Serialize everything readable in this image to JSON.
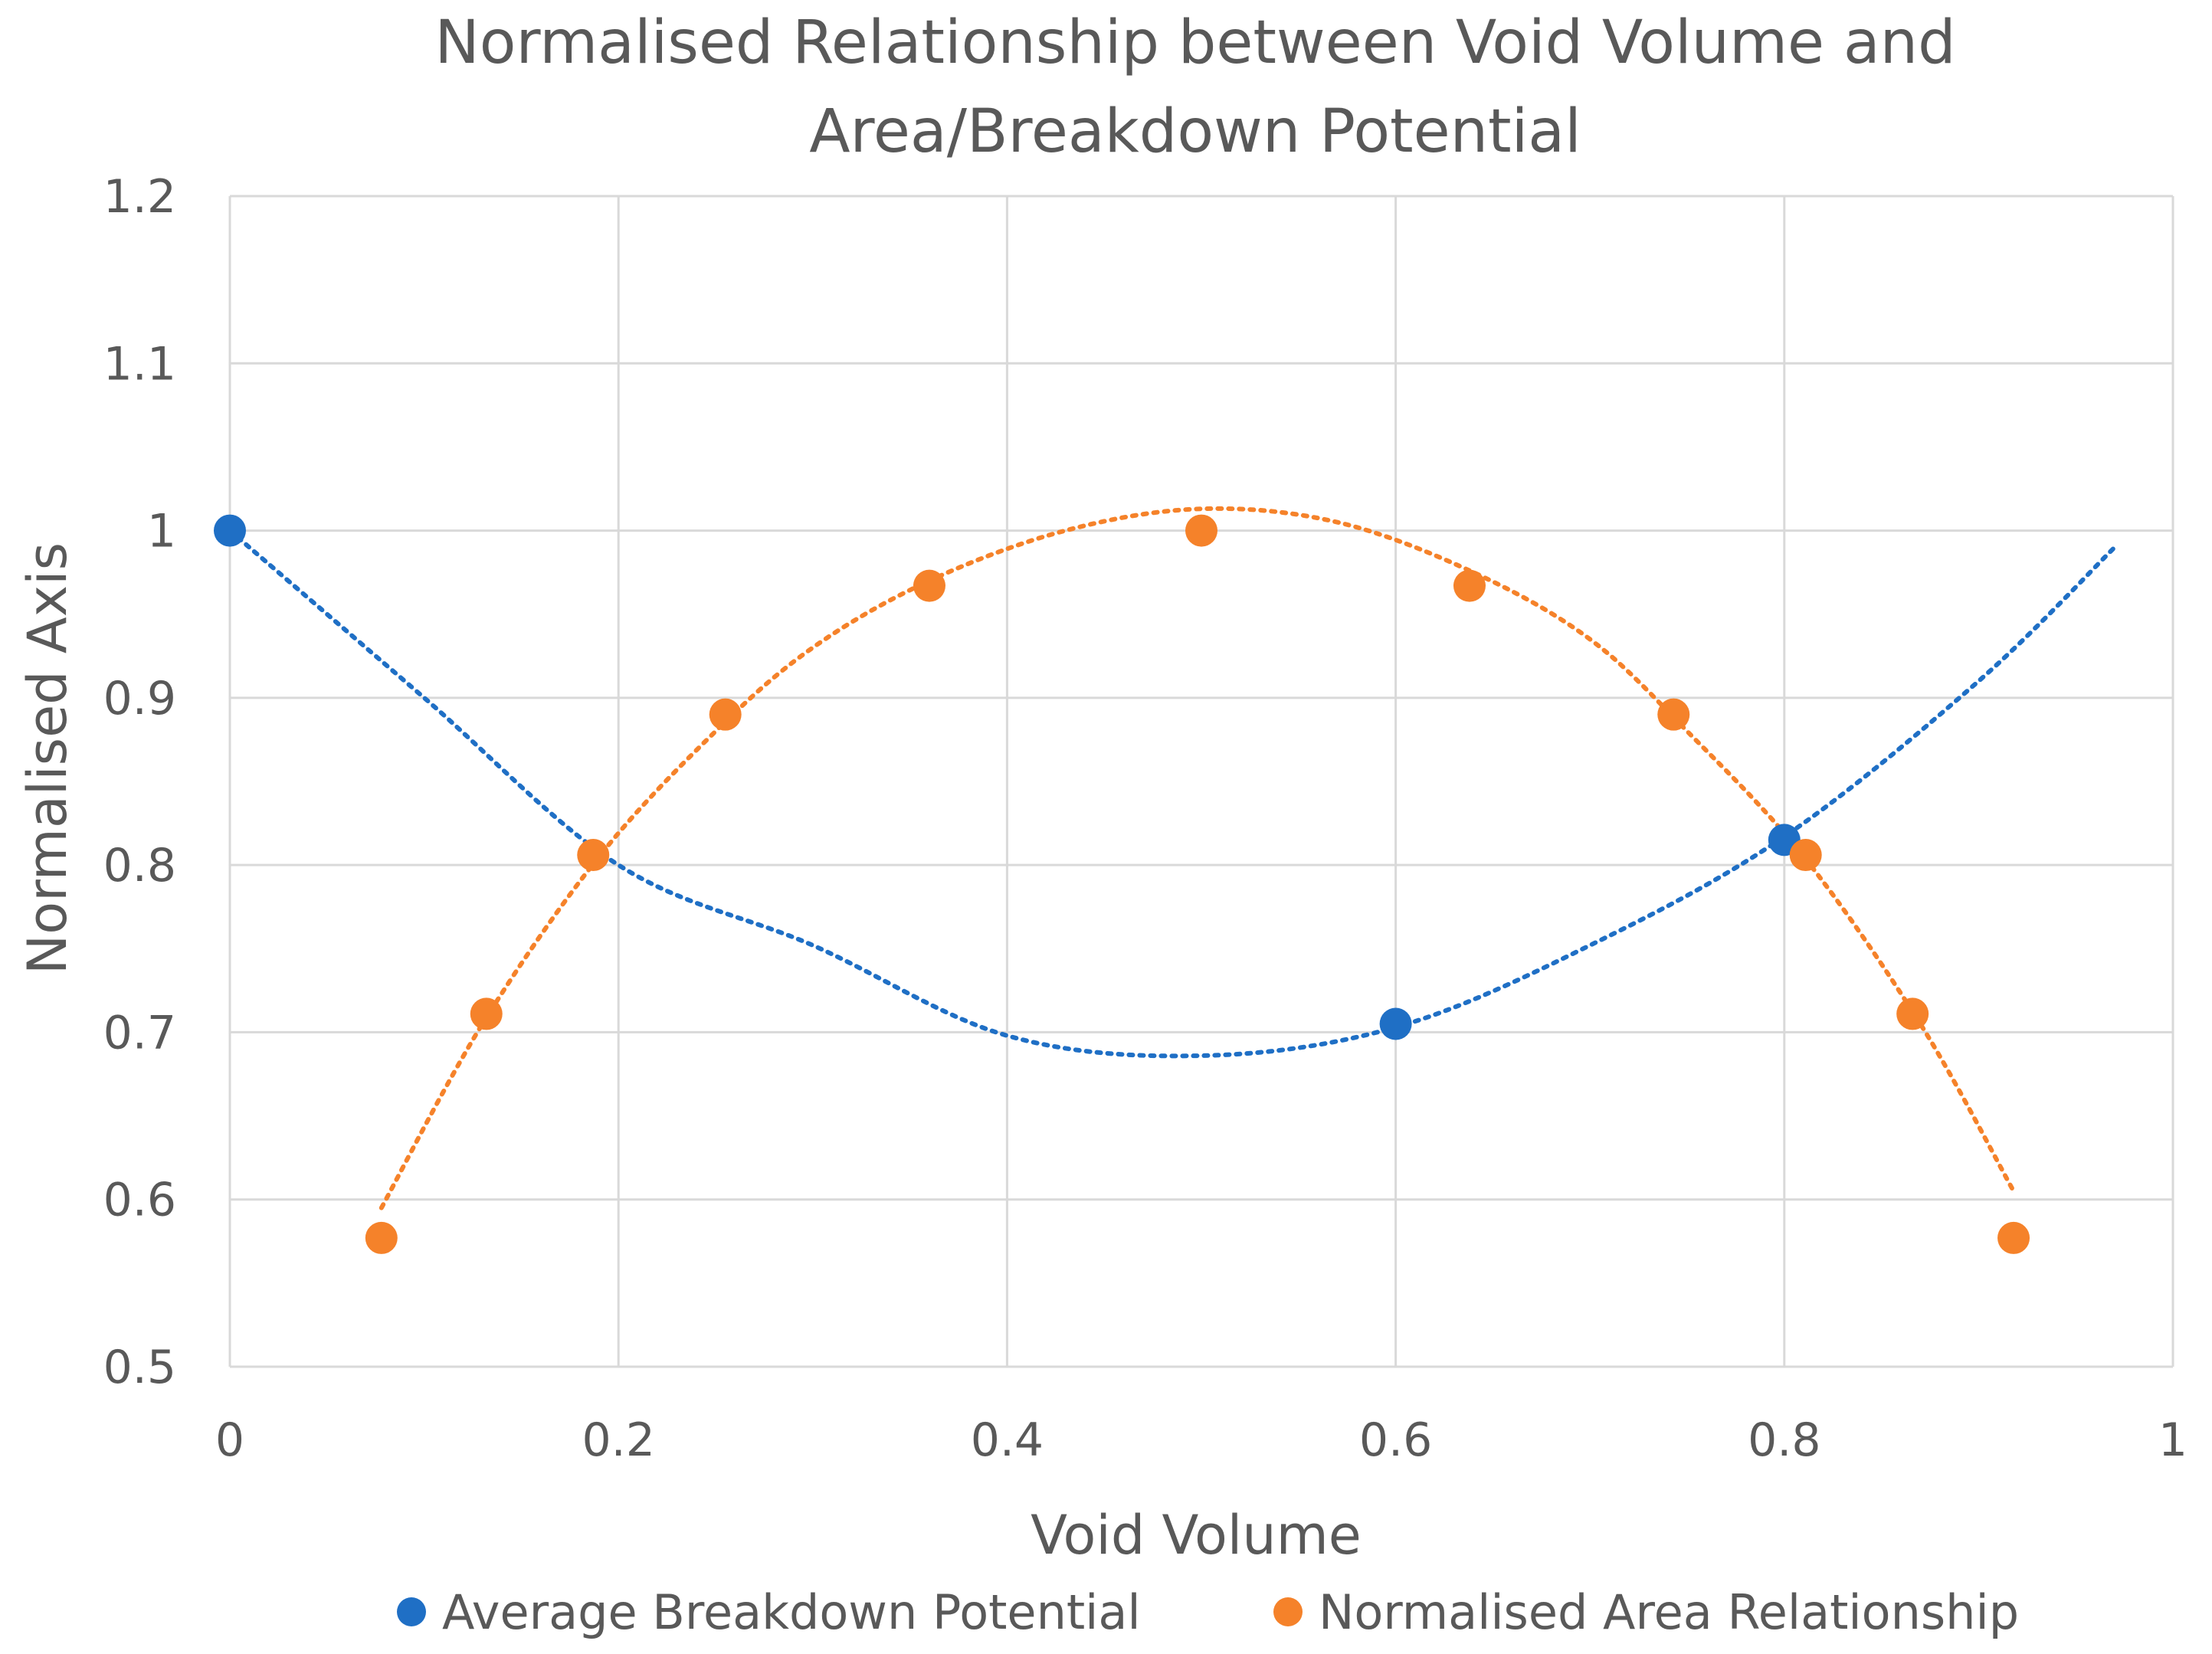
{
  "chart_data": {
    "type": "scatter",
    "title_lines": [
      "Normalised Relationship between Void Volume and",
      "Area/Breakdown Potential"
    ],
    "xlabel": "Void Volume",
    "ylabel": "Normalised Axis",
    "xlim": [
      0,
      1
    ],
    "ylim": [
      0.5,
      1.2
    ],
    "x_ticks": [
      0,
      0.2,
      0.4,
      0.6,
      0.8,
      1
    ],
    "x_tick_labels": [
      "0",
      "0.2",
      "0.4",
      "0.6",
      "0.8",
      "1"
    ],
    "y_ticks": [
      0.5,
      0.6,
      0.7,
      0.8,
      0.9,
      1.0,
      1.1,
      1.2
    ],
    "y_tick_labels": [
      "0.5",
      "0.6",
      "0.7",
      "0.8",
      "0.9",
      "1",
      "1.1",
      "1.2"
    ],
    "grid": true,
    "legend_position": "bottom",
    "series": [
      {
        "name": "Average Breakdown Potential",
        "color": "#1f6fc5",
        "points": [
          {
            "x": 0.0,
            "y": 1.0
          },
          {
            "x": 0.6,
            "y": 0.705
          },
          {
            "x": 0.8,
            "y": 0.815
          }
        ],
        "trendline": {
          "style": "dotted",
          "x_range": [
            0.0,
            0.97
          ],
          "points": [
            {
              "x": 0.0,
              "y": 1.0
            },
            {
              "x": 0.1,
              "y": 0.9
            },
            {
              "x": 0.2,
              "y": 0.8
            },
            {
              "x": 0.3,
              "y": 0.752
            },
            {
              "x": 0.4,
              "y": 0.698
            },
            {
              "x": 0.5,
              "y": 0.686
            },
            {
              "x": 0.6,
              "y": 0.703
            },
            {
              "x": 0.7,
              "y": 0.752
            },
            {
              "x": 0.8,
              "y": 0.817
            },
            {
              "x": 0.9,
              "y": 0.91
            },
            {
              "x": 0.97,
              "y": 0.99
            }
          ]
        }
      },
      {
        "name": "Normalised Area Relationship",
        "color": "#f5822a",
        "points": [
          {
            "x": 0.078,
            "y": 0.577
          },
          {
            "x": 0.132,
            "y": 0.711
          },
          {
            "x": 0.187,
            "y": 0.806
          },
          {
            "x": 0.255,
            "y": 0.89
          },
          {
            "x": 0.36,
            "y": 0.967
          },
          {
            "x": 0.5,
            "y": 1.0
          },
          {
            "x": 0.638,
            "y": 0.967
          },
          {
            "x": 0.743,
            "y": 0.89
          },
          {
            "x": 0.811,
            "y": 0.806
          },
          {
            "x": 0.866,
            "y": 0.711
          },
          {
            "x": 0.918,
            "y": 0.577
          }
        ],
        "trendline": {
          "style": "dotted",
          "x_range": [
            0.078,
            0.918
          ],
          "points": [
            {
              "x": 0.078,
              "y": 0.595
            },
            {
              "x": 0.13,
              "y": 0.705
            },
            {
              "x": 0.19,
              "y": 0.805
            },
            {
              "x": 0.25,
              "y": 0.88
            },
            {
              "x": 0.3,
              "y": 0.93
            },
            {
              "x": 0.36,
              "y": 0.97
            },
            {
              "x": 0.43,
              "y": 1.0
            },
            {
              "x": 0.5,
              "y": 1.013
            },
            {
              "x": 0.57,
              "y": 1.005
            },
            {
              "x": 0.64,
              "y": 0.975
            },
            {
              "x": 0.7,
              "y": 0.935
            },
            {
              "x": 0.75,
              "y": 0.88
            },
            {
              "x": 0.81,
              "y": 0.805
            },
            {
              "x": 0.87,
              "y": 0.705
            },
            {
              "x": 0.918,
              "y": 0.605
            }
          ]
        }
      }
    ]
  }
}
